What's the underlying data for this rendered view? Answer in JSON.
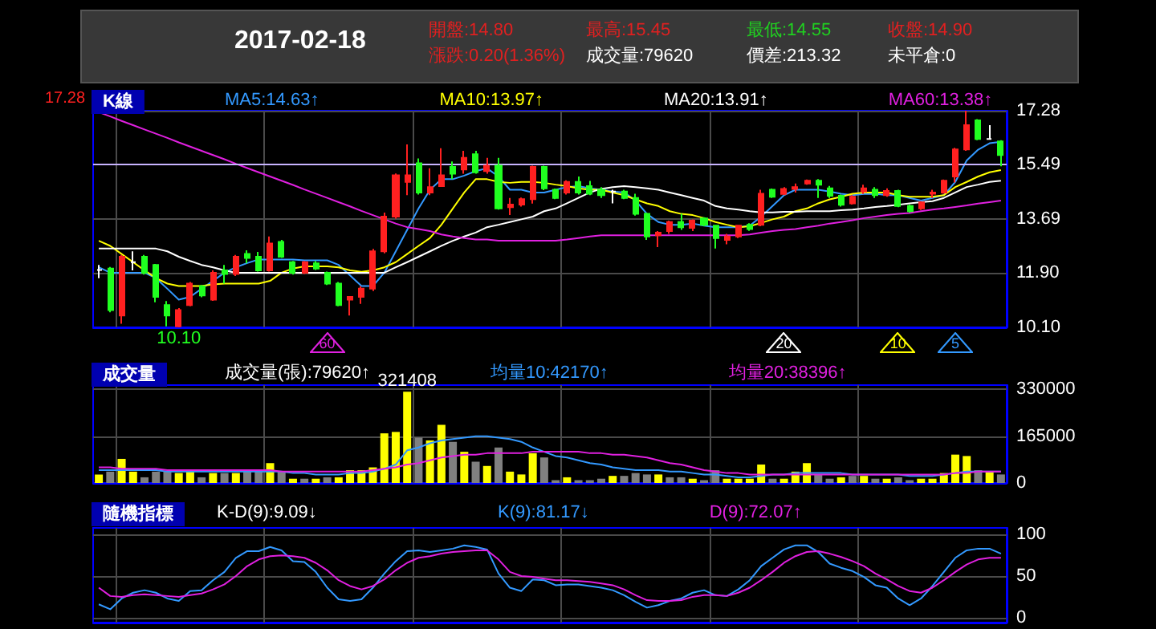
{
  "chart_data": [
    {
      "type": "other",
      "title": "2017-02-18",
      "annotations": [
        "開盤:14.80",
        "漲跌:0.20(1.36%)",
        "最高:15.45",
        "成交量:79620",
        "最低:14.55",
        "價差:213.32",
        "收盤:14.90",
        "未平倉:0"
      ]
    },
    {
      "type": "candlestick",
      "title": "K線",
      "categories": [
        null,
        null,
        null,
        null,
        null,
        null,
        null,
        null,
        null,
        null,
        null,
        null,
        null,
        null,
        null,
        null,
        null,
        null,
        null,
        null,
        null,
        null,
        null,
        null,
        null,
        null,
        null,
        null,
        null,
        null,
        null,
        null,
        null,
        null,
        null,
        null,
        null,
        null,
        null,
        null,
        null,
        null,
        null,
        null,
        null,
        null,
        null,
        null,
        null,
        null,
        null,
        null,
        null,
        null,
        null,
        null,
        null,
        null,
        null,
        null,
        null,
        null,
        null,
        null,
        null,
        null,
        null,
        null,
        null,
        null,
        null,
        null,
        null,
        null,
        null,
        null,
        null,
        null,
        null,
        null
      ],
      "ohlc": [
        [
          12.0,
          12.17,
          11.73,
          12.0
        ],
        [
          12.05,
          12.1,
          10.6,
          10.67
        ],
        [
          10.49,
          12.5,
          10.22,
          12.44
        ],
        [
          12.26,
          12.62,
          11.99,
          12.26
        ],
        [
          12.44,
          12.5,
          11.85,
          11.91
        ],
        [
          12.17,
          12.2,
          10.93,
          11.11
        ],
        [
          10.84,
          10.97,
          10.13,
          10.49
        ],
        [
          10.13,
          10.74,
          10.1,
          10.67
        ],
        [
          10.84,
          11.6,
          10.8,
          11.55
        ],
        [
          11.46,
          11.5,
          11.1,
          11.16
        ],
        [
          11.02,
          11.99,
          10.98,
          11.91
        ],
        [
          11.99,
          12.17,
          11.55,
          11.87
        ],
        [
          11.87,
          12.5,
          11.8,
          12.44
        ],
        [
          12.53,
          12.65,
          12.22,
          12.4
        ],
        [
          12.44,
          12.6,
          11.95,
          11.99
        ],
        [
          11.99,
          13.11,
          11.95,
          12.88
        ],
        [
          12.93,
          13.0,
          12.4,
          12.44
        ],
        [
          12.26,
          12.3,
          11.85,
          11.91
        ],
        [
          11.91,
          12.3,
          11.87,
          12.26
        ],
        [
          12.22,
          12.3,
          12.0,
          12.05
        ],
        [
          11.91,
          11.95,
          11.5,
          11.55
        ],
        [
          11.55,
          11.6,
          10.8,
          10.84
        ],
        [
          11.02,
          11.11,
          10.49,
          11.11
        ],
        [
          11.11,
          11.46,
          10.88,
          11.38
        ],
        [
          11.38,
          12.7,
          11.3,
          12.62
        ],
        [
          12.62,
          13.9,
          12.55,
          13.77
        ],
        [
          13.77,
          15.2,
          13.7,
          15.14
        ],
        [
          14.92,
          16.16,
          14.48,
          15.14
        ],
        [
          15.54,
          15.7,
          14.5,
          14.57
        ],
        [
          14.57,
          15.37,
          14.48,
          14.75
        ],
        [
          14.78,
          16.04,
          14.78,
          15.14
        ],
        [
          15.42,
          15.6,
          15.01,
          15.19
        ],
        [
          15.33,
          15.95,
          15.19,
          15.72
        ],
        [
          15.84,
          15.95,
          15.19,
          15.24
        ],
        [
          15.28,
          15.72,
          15.19,
          15.46
        ],
        [
          15.46,
          15.72,
          14.0,
          14.04
        ],
        [
          14.08,
          14.39,
          13.82,
          14.17
        ],
        [
          14.17,
          14.4,
          14.1,
          14.35
        ],
        [
          14.35,
          15.46,
          14.2,
          15.42
        ],
        [
          15.42,
          15.46,
          14.65,
          14.71
        ],
        [
          14.66,
          14.7,
          14.35,
          14.39
        ],
        [
          14.57,
          14.97,
          14.5,
          14.92
        ],
        [
          14.92,
          15.1,
          14.5,
          14.57
        ],
        [
          14.78,
          14.95,
          14.48,
          14.53
        ],
        [
          14.66,
          14.75,
          14.39,
          14.48
        ],
        [
          14.6,
          14.66,
          14.21,
          14.6
        ],
        [
          14.6,
          14.66,
          14.35,
          14.39
        ],
        [
          14.39,
          14.53,
          13.8,
          13.86
        ],
        [
          13.86,
          13.9,
          13.0,
          13.11
        ],
        [
          13.15,
          13.29,
          12.76,
          13.24
        ],
        [
          13.29,
          13.64,
          13.2,
          13.59
        ],
        [
          13.59,
          13.86,
          13.33,
          13.42
        ],
        [
          13.4,
          13.68,
          13.29,
          13.64
        ],
        [
          13.71,
          13.75,
          13.45,
          13.5
        ],
        [
          13.47,
          13.5,
          12.71,
          13.06
        ],
        [
          13.0,
          13.2,
          12.85,
          13.11
        ],
        [
          13.11,
          13.5,
          13.06,
          13.47
        ],
        [
          13.5,
          13.55,
          13.3,
          13.36
        ],
        [
          13.5,
          14.66,
          13.45,
          14.53
        ],
        [
          14.66,
          14.7,
          14.39,
          14.43
        ],
        [
          14.52,
          14.75,
          14.48,
          14.69
        ],
        [
          14.69,
          14.87,
          14.57,
          14.75
        ],
        [
          14.87,
          15.0,
          14.83,
          14.96
        ],
        [
          14.96,
          15.01,
          14.39,
          14.83
        ],
        [
          14.71,
          14.79,
          14.39,
          14.46
        ],
        [
          14.46,
          14.5,
          14.1,
          14.16
        ],
        [
          14.21,
          14.48,
          14.17,
          14.43
        ],
        [
          14.6,
          14.83,
          14.52,
          14.71
        ],
        [
          14.66,
          14.75,
          14.39,
          14.48
        ],
        [
          14.48,
          14.71,
          14.43,
          14.62
        ],
        [
          14.62,
          14.66,
          14.08,
          14.12
        ],
        [
          14.12,
          14.17,
          13.9,
          13.95
        ],
        [
          14.04,
          14.28,
          13.99,
          14.24
        ],
        [
          14.53,
          14.66,
          14.39,
          14.57
        ],
        [
          14.57,
          15.0,
          14.53,
          14.96
        ],
        [
          15.1,
          16.05,
          14.9,
          16.0
        ],
        [
          16.0,
          17.28,
          15.95,
          16.8
        ],
        [
          16.96,
          17.0,
          16.3,
          16.34
        ],
        [
          16.34,
          16.8,
          16.34,
          16.34
        ],
        [
          16.26,
          16.3,
          15.44,
          15.81
        ]
      ],
      "series": [
        {
          "name": "MA5:14.63↑",
          "type": "line",
          "color": "#3399ff",
          "values": [
            12.09,
            11.91,
            11.91,
            11.91,
            11.91,
            11.73,
            11.38,
            11.02,
            11.11,
            11.38,
            11.64,
            11.91,
            12.09,
            12.23,
            12.35,
            12.35,
            12.35,
            12.35,
            12.32,
            12.32,
            12.32,
            12.17,
            11.82,
            11.47,
            11.47,
            11.91,
            12.62,
            13.33,
            14.04,
            14.66,
            15.01,
            15.01,
            15.13,
            15.28,
            15.37,
            15.1,
            14.66,
            14.66,
            14.57,
            14.57,
            14.66,
            14.75,
            14.78,
            14.71,
            14.66,
            14.6,
            14.57,
            14.3,
            13.86,
            13.59,
            13.5,
            13.5,
            13.54,
            13.47,
            13.42,
            13.42,
            13.42,
            13.47,
            13.77,
            14.12,
            14.48,
            14.66,
            14.66,
            14.66,
            14.6,
            14.53,
            14.48,
            14.52,
            14.53,
            14.48,
            14.48,
            14.39,
            14.3,
            14.39,
            14.48,
            14.92,
            15.63,
            15.99,
            16.2,
            16.25
          ]
        },
        {
          "name": "MA10:13.97↑",
          "type": "line",
          "color": "#ffff00",
          "values": [
            12.97,
            12.8,
            12.53,
            12.26,
            11.99,
            11.73,
            11.55,
            11.47,
            11.47,
            11.47,
            11.52,
            11.55,
            11.55,
            11.55,
            11.55,
            11.64,
            11.91,
            12.05,
            12.12,
            12.12,
            12.12,
            12.09,
            11.99,
            11.94,
            11.99,
            12.09,
            12.26,
            12.53,
            12.8,
            13.06,
            13.5,
            14.04,
            14.57,
            15.01,
            15.01,
            14.92,
            14.89,
            14.92,
            14.92,
            14.89,
            14.83,
            14.78,
            14.71,
            14.66,
            14.66,
            14.57,
            14.48,
            14.34,
            14.21,
            14.12,
            13.95,
            13.86,
            13.82,
            13.72,
            13.59,
            13.5,
            13.42,
            13.45,
            13.56,
            13.68,
            13.77,
            13.95,
            14.04,
            14.21,
            14.34,
            14.43,
            14.53,
            14.57,
            14.57,
            14.57,
            14.48,
            14.43,
            14.43,
            14.43,
            14.48,
            14.75,
            14.92,
            15.1,
            15.24,
            15.31
          ]
        },
        {
          "name": "MA20:13.91↑",
          "type": "line",
          "color": "#ffffff",
          "values": [
            12.71,
            12.71,
            12.71,
            12.71,
            12.71,
            12.71,
            12.62,
            12.44,
            12.3,
            12.17,
            12.09,
            11.99,
            11.91,
            11.91,
            11.91,
            11.91,
            11.91,
            11.91,
            11.91,
            11.91,
            11.91,
            11.91,
            11.91,
            11.91,
            11.91,
            11.91,
            12.09,
            12.26,
            12.44,
            12.62,
            12.8,
            12.97,
            13.11,
            13.24,
            13.42,
            13.5,
            13.59,
            13.68,
            13.77,
            13.95,
            14.04,
            14.21,
            14.39,
            14.57,
            14.69,
            14.75,
            14.78,
            14.75,
            14.71,
            14.66,
            14.57,
            14.48,
            14.39,
            14.3,
            14.12,
            14.04,
            14.0,
            13.95,
            13.91,
            13.91,
            13.93,
            13.93,
            13.95,
            13.95,
            13.95,
            13.98,
            14.0,
            14.04,
            14.09,
            14.12,
            14.16,
            14.21,
            14.25,
            14.28,
            14.39,
            14.57,
            14.75,
            14.83,
            14.92,
            14.96
          ]
        },
        {
          "name": "MA60:13.38↑",
          "type": "line",
          "color": "#e020e0",
          "values": [
            17.23,
            17.09,
            16.94,
            16.8,
            16.66,
            16.52,
            16.38,
            16.23,
            16.09,
            15.95,
            15.81,
            15.67,
            15.52,
            15.38,
            15.24,
            15.1,
            14.96,
            14.82,
            14.67,
            14.53,
            14.39,
            14.25,
            14.11,
            13.96,
            13.82,
            13.68,
            13.54,
            13.42,
            13.36,
            13.29,
            13.18,
            13.11,
            13.06,
            13.01,
            13.01,
            12.97,
            12.97,
            12.97,
            12.97,
            12.97,
            12.97,
            13.01,
            13.06,
            13.11,
            13.15,
            13.15,
            13.15,
            13.15,
            13.15,
            13.15,
            13.15,
            13.15,
            13.15,
            13.15,
            13.15,
            13.15,
            13.15,
            13.18,
            13.24,
            13.29,
            13.33,
            13.36,
            13.42,
            13.47,
            13.54,
            13.59,
            13.65,
            13.72,
            13.77,
            13.82,
            13.86,
            13.89,
            13.95,
            14.0,
            14.04,
            14.09,
            14.14,
            14.2,
            14.25,
            14.3
          ]
        }
      ],
      "ylim": [
        10.1,
        17.28
      ],
      "yticks": [
        {
          "value": 10.1,
          "label": "10.10"
        },
        {
          "value": 11.9,
          "label": "11.90"
        },
        13.69,
        15.49,
        17.28
      ],
      "ref_lines": [
        {
          "axis": "y",
          "value": 15.49,
          "color": "#c8b4ff"
        }
      ],
      "annotations": [
        "17.28",
        {
          "text": "10.10",
          "y": 10.1
        },
        "60",
        "20",
        "10",
        "5"
      ],
      "tick_labels": "y",
      "grid": true,
      "legend": "top"
    },
    {
      "type": "bar",
      "title": "成交量",
      "categories": [
        null,
        null,
        null,
        null,
        null,
        null,
        null,
        null,
        null,
        null,
        null,
        null,
        null,
        null,
        null,
        null,
        null,
        null,
        null,
        null,
        null,
        null,
        null,
        null,
        null,
        null,
        null,
        null,
        null,
        null,
        null,
        null,
        null,
        null,
        null,
        null,
        null,
        null,
        null,
        null,
        null,
        null,
        null,
        null,
        null,
        null,
        null,
        null,
        null,
        null,
        null,
        null,
        null,
        null,
        null,
        null,
        null,
        null,
        null,
        null,
        null,
        null,
        null,
        null,
        null,
        null,
        null,
        null,
        null,
        null,
        null,
        null,
        null,
        null,
        null,
        null,
        null,
        null,
        null,
        null
      ],
      "series": [
        {
          "name": "成交量(張):79620↑",
          "colors": [
            "#ffff00",
            "#808080",
            "#ffff00",
            "#ffff00",
            "#808080",
            "#808080",
            "#808080",
            "#ffff00",
            "#ffff00",
            "#808080",
            "#ffff00",
            "#808080",
            "#ffff00",
            "#808080",
            "#808080",
            "#ffff00",
            "#808080",
            "#ffff00",
            "#808080",
            "#ffff00",
            "#808080",
            "#ffff00",
            "#ffff00",
            "#ffff00",
            "#ffff00",
            "#ffff00",
            "#ffff00",
            "#ffff00",
            "#808080",
            "#ffff00",
            "#ffff00",
            "#808080",
            "#ffff00",
            "#808080",
            "#ffff00",
            "#808080",
            "#ffff00",
            "#ffff00",
            "#ffff00",
            "#808080",
            "#808080",
            "#ffff00",
            "#808080",
            "#808080",
            "#808080",
            "#ffff00",
            "#808080",
            "#808080",
            "#808080",
            "#ffff00",
            "#808080",
            "#808080",
            "#ffff00",
            "#808080",
            "#808080",
            "#ffff00",
            "#ffff00",
            "#ffff00",
            "#ffff00",
            "#808080",
            "#ffff00",
            "#ffff00",
            "#ffff00",
            "#808080",
            "#808080",
            "#ffff00",
            "#808080",
            "#ffff00",
            "#808080",
            "#ffff00",
            "#808080",
            "#808080",
            "#ffff00",
            "#ffff00",
            "#ffff00",
            "#ffff00",
            "#ffff00",
            "#808080",
            "#ffff00",
            "#808080"
          ],
          "values": [
            30000,
            40000,
            85000,
            40000,
            20000,
            40000,
            40000,
            35000,
            45000,
            20000,
            35000,
            35000,
            35000,
            40000,
            45000,
            70000,
            40000,
            15000,
            15000,
            15000,
            20000,
            20000,
            45000,
            45000,
            55000,
            175000,
            180000,
            321408,
            160000,
            150000,
            205000,
            145000,
            110000,
            75000,
            60000,
            125000,
            40000,
            30000,
            105000,
            90000,
            10000,
            20000,
            10000,
            10000,
            15000,
            25000,
            25000,
            35000,
            30000,
            30000,
            20000,
            20000,
            15000,
            10000,
            45000,
            15000,
            15000,
            15000,
            65000,
            15000,
            15000,
            40000,
            70000,
            30000,
            15000,
            20000,
            25000,
            25000,
            15000,
            15000,
            20000,
            10000,
            15000,
            15000,
            35000,
            100000,
            95000,
            45000,
            40000,
            30000
          ],
          "value_labels": [
            null,
            null,
            null,
            null,
            null,
            null,
            null,
            null,
            null,
            null,
            null,
            null,
            null,
            null,
            null,
            null,
            null,
            null,
            null,
            null,
            null,
            null,
            null,
            null,
            null,
            null,
            null,
            "321408",
            null,
            null,
            null,
            null,
            null,
            null,
            null,
            null,
            null,
            null,
            null,
            null,
            null,
            null,
            null,
            null,
            null,
            null,
            null,
            null,
            null,
            null,
            null,
            null,
            null,
            null,
            null,
            null,
            null,
            null,
            null,
            null,
            null,
            null,
            null,
            null,
            null,
            null,
            null,
            null,
            null,
            null,
            null,
            null,
            null,
            null,
            null,
            null,
            null,
            null,
            null,
            null
          ]
        },
        {
          "name": "均量10:42170↑",
          "type": "line",
          "color": "#3399ff",
          "values": [
            45000,
            45000,
            45000,
            45000,
            45000,
            45000,
            40000,
            40000,
            40000,
            40000,
            40000,
            40000,
            40000,
            40000,
            40000,
            40000,
            40000,
            35000,
            35000,
            30000,
            30000,
            30000,
            35000,
            35000,
            40000,
            50000,
            65000,
            115000,
            125000,
            140000,
            150000,
            155000,
            160000,
            165000,
            165000,
            160000,
            155000,
            145000,
            125000,
            110000,
            95000,
            90000,
            80000,
            70000,
            65000,
            55000,
            50000,
            45000,
            45000,
            45000,
            40000,
            40000,
            35000,
            30000,
            30000,
            25000,
            20000,
            20000,
            25000,
            30000,
            30000,
            35000,
            35000,
            35000,
            35000,
            35000,
            30000,
            30000,
            30000,
            30000,
            30000,
            25000,
            25000,
            25000,
            30000,
            35000,
            40000,
            40000,
            40000,
            40000
          ]
        },
        {
          "name": "均量20:38396↑",
          "type": "line",
          "color": "#e020e0",
          "values": [
            55000,
            55000,
            50000,
            50000,
            50000,
            50000,
            45000,
            45000,
            45000,
            45000,
            45000,
            45000,
            45000,
            45000,
            45000,
            45000,
            40000,
            40000,
            40000,
            40000,
            40000,
            40000,
            40000,
            40000,
            45000,
            50000,
            55000,
            65000,
            70000,
            80000,
            90000,
            95000,
            100000,
            100000,
            105000,
            105000,
            105000,
            105000,
            110000,
            110000,
            110000,
            110000,
            110000,
            105000,
            105000,
            100000,
            100000,
            95000,
            90000,
            80000,
            70000,
            65000,
            55000,
            45000,
            40000,
            35000,
            35000,
            30000,
            30000,
            30000,
            30000,
            30000,
            30000,
            30000,
            30000,
            30000,
            30000,
            30000,
            30000,
            30000,
            30000,
            30000,
            30000,
            30000,
            30000,
            35000,
            35000,
            40000,
            40000,
            40000
          ]
        }
      ],
      "ylim": [
        0,
        345000
      ],
      "yticks": [
        0,
        165000,
        330000
      ],
      "tick_labels": "y",
      "grid": true,
      "legend": "top"
    },
    {
      "type": "line",
      "title": "隨機指標",
      "subtitle": "K-D(9):9.09↓",
      "categories": [
        null,
        null,
        null,
        null,
        null,
        null,
        null,
        null,
        null,
        null,
        null,
        null,
        null,
        null,
        null,
        null,
        null,
        null,
        null,
        null,
        null,
        null,
        null,
        null,
        null,
        null,
        null,
        null,
        null,
        null,
        null,
        null,
        null,
        null,
        null,
        null,
        null,
        null,
        null,
        null,
        null,
        null,
        null,
        null,
        null,
        null,
        null,
        null,
        null,
        null,
        null,
        null,
        null,
        null,
        null,
        null,
        null,
        null,
        null,
        null,
        null,
        null,
        null,
        null,
        null,
        null,
        null,
        null,
        null,
        null,
        null,
        null,
        null,
        null,
        null,
        null,
        null,
        null,
        null,
        null
      ],
      "series": [
        {
          "name": "K(9):81.17↓",
          "color": "#3399ff",
          "values": [
            16,
            10,
            23,
            30,
            33,
            30,
            23,
            20,
            32,
            33,
            45,
            55,
            72,
            80,
            80,
            85,
            81,
            68,
            67,
            55,
            36,
            22,
            20,
            22,
            36,
            53,
            68,
            80,
            81,
            79,
            81,
            83,
            87,
            85,
            82,
            53,
            36,
            32,
            46,
            45,
            39,
            40,
            40,
            38,
            36,
            33,
            27,
            19,
            12,
            15,
            20,
            23,
            30,
            33,
            27,
            26,
            34,
            45,
            62,
            72,
            82,
            87,
            87,
            79,
            65,
            60,
            56,
            49,
            39,
            36,
            23,
            15,
            23,
            38,
            55,
            72,
            81,
            83,
            83,
            77
          ]
        },
        {
          "name": "D(9):72.07↑",
          "color": "#e020e0",
          "values": [
            36,
            26,
            25,
            27,
            28,
            27,
            26,
            25,
            27,
            29,
            34,
            40,
            50,
            62,
            70,
            74,
            75,
            74,
            72,
            66,
            57,
            45,
            38,
            34,
            38,
            46,
            57,
            66,
            72,
            74,
            77,
            79,
            80,
            81,
            81,
            70,
            55,
            50,
            49,
            47,
            45,
            45,
            44,
            43,
            41,
            39,
            34,
            27,
            21,
            20,
            20,
            21,
            25,
            27,
            27,
            26,
            30,
            36,
            45,
            55,
            66,
            74,
            79,
            80,
            77,
            73,
            68,
            62,
            53,
            46,
            38,
            32,
            30,
            36,
            45,
            55,
            64,
            70,
            72,
            72
          ]
        }
      ],
      "ylim": [
        -6,
        108
      ],
      "yticks": [
        0,
        50,
        100
      ],
      "tick_labels": "y",
      "grid": true,
      "legend": "top"
    }
  ]
}
